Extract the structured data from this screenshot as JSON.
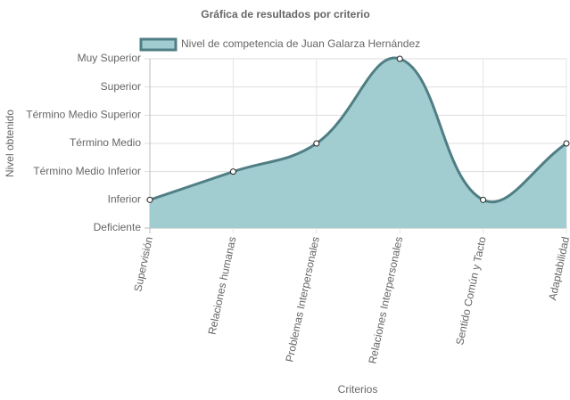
{
  "chart_data": {
    "type": "area",
    "title": "Gráfica de resultados por criterio",
    "x_label": "Criterios",
    "y_label": "Nivel obtenido",
    "categories": [
      "Supervisión",
      "Relaciones humanas",
      "Problemas Interpersonales",
      "Relaciones Interpersonales",
      "Sentido Común y Tacto",
      "Adaptabilidad"
    ],
    "series": [
      {
        "name": "Nivel de competencia de Juan Galarza Hernández",
        "color": "#4f7e84",
        "fill": "#a1cdd0",
        "values": [
          1,
          2,
          3,
          6,
          1,
          3
        ]
      }
    ],
    "ylim": [
      0,
      6
    ],
    "yticks": [
      {
        "value": 0,
        "label": "Deficiente"
      },
      {
        "value": 1,
        "label": "Inferior"
      },
      {
        "value": 2,
        "label": "Término Medio Inferior"
      },
      {
        "value": 3,
        "label": "Término Medio"
      },
      {
        "value": 4,
        "label": "Término Medio Superior"
      },
      {
        "value": 5,
        "label": "Superior"
      },
      {
        "value": 6,
        "label": "Muy Superior"
      }
    ],
    "grid": true
  }
}
